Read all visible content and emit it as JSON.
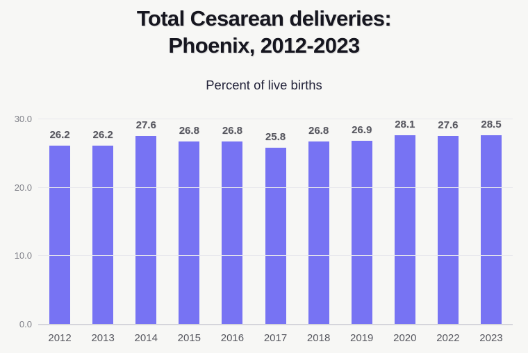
{
  "header": {
    "title": "Total Cesarean deliveries:\nPhoenix, 2012-2023",
    "subtitle": "Percent of live births"
  },
  "chart_data": {
    "type": "bar",
    "title": "Total Cesarean deliveries: Phoenix, 2012-2023",
    "subtitle": "Percent of live births",
    "categories": [
      "2012",
      "2013",
      "2014",
      "2015",
      "2016",
      "2017",
      "2018",
      "2019",
      "2020",
      "2022",
      "2023"
    ],
    "values": [
      26.2,
      26.2,
      27.6,
      26.8,
      26.8,
      25.8,
      26.8,
      26.9,
      28.1,
      27.6,
      28.5
    ],
    "value_labels": [
      "26.2",
      "26.2",
      "27.6",
      "26.8",
      "26.8",
      "25.8",
      "26.8",
      "26.9",
      "28.1",
      "27.6",
      "28.5"
    ],
    "xlabel": "",
    "ylabel": "",
    "ylim": [
      0,
      30
    ],
    "yticks": [
      0,
      10,
      20,
      30
    ],
    "ytick_labels": [
      "0.0",
      "10.0",
      "20.0",
      "30.0"
    ],
    "grid": true,
    "legend": false,
    "colors": {
      "bar": "#7773f3",
      "background": "#f7f7f5",
      "gridline": "#e8e8ec",
      "axis_line": "#d5d5db",
      "value_label": "#57575f",
      "x_tick_label": "#55565e",
      "y_tick_label": "#7f8088",
      "title": "#16161f",
      "subtitle": "#23233a"
    }
  }
}
